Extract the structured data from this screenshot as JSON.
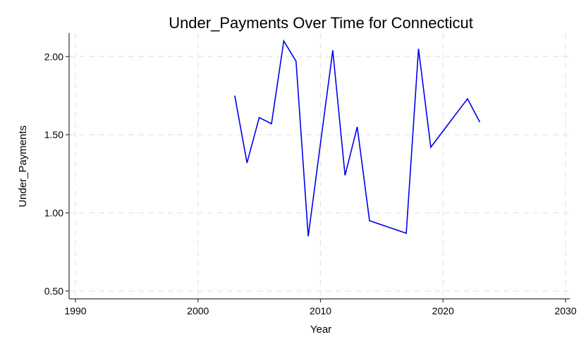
{
  "chart_data": {
    "type": "line",
    "title": "Under_Payments Over Time for Connecticut",
    "xlabel": "Year",
    "ylabel": "Under_Payments",
    "xlim": [
      1990,
      2030
    ],
    "ylim": [
      0.45,
      2.15
    ],
    "x_ticks": [
      1990,
      2000,
      2010,
      2020,
      2030
    ],
    "y_ticks": [
      0.5,
      1.0,
      1.5,
      2.0
    ],
    "y_tick_labels": [
      "0.50",
      "1.00",
      "1.50",
      "2.00"
    ],
    "grid": true,
    "series": [
      {
        "color": "#0000ee",
        "x": [
          2003,
          2004,
          2005,
          2006,
          2007,
          2008,
          2009,
          2011,
          2012,
          2013,
          2014,
          2017,
          2018,
          2019,
          2022,
          2023
        ],
        "values": [
          1.75,
          1.32,
          1.61,
          1.57,
          2.1,
          1.97,
          0.85,
          2.04,
          1.24,
          1.55,
          0.95,
          0.87,
          2.05,
          1.42,
          1.73,
          1.58
        ]
      }
    ]
  }
}
